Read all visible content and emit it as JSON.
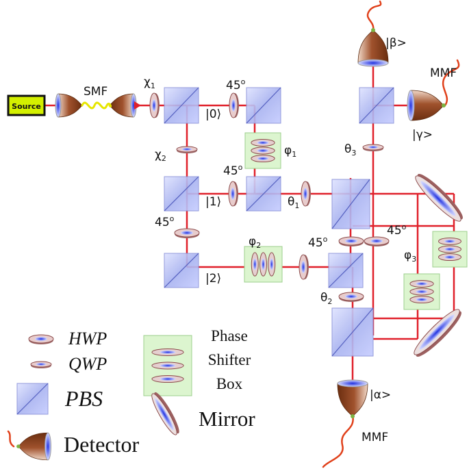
{
  "source": "Source",
  "fibers": [
    "SMF",
    "MMF",
    "MMF"
  ],
  "labels": [
    {
      "text": "χ",
      "sub": "1"
    },
    {
      "text": "45",
      "sup": "o"
    },
    {
      "text": "|0⟩"
    },
    {
      "text": "φ",
      "sub": "1"
    },
    {
      "text": "χ",
      "sub": "2"
    },
    {
      "text": "45",
      "sup": "o"
    },
    {
      "text": "|1⟩"
    },
    {
      "text": "θ",
      "sub": "1"
    },
    {
      "text": "45",
      "sup": "o"
    },
    {
      "text": "φ",
      "sub": "2"
    },
    {
      "text": "|2⟩"
    },
    {
      "text": "45",
      "sup": "o"
    },
    {
      "text": "45",
      "sup": "o"
    },
    {
      "text": "φ",
      "sub": "3"
    },
    {
      "text": "θ",
      "sub": "2"
    },
    {
      "text": "θ",
      "sub": "3"
    },
    {
      "text": "|β>"
    },
    {
      "text": "|γ>"
    },
    {
      "text": "|α>"
    }
  ],
  "legend": {
    "hwp": "HWP",
    "qwp": "QWP",
    "pbs": "PBS",
    "phase_box": [
      "Phase",
      "Shifter",
      "Box"
    ],
    "mirror": "Mirror",
    "detector": "Detector"
  }
}
